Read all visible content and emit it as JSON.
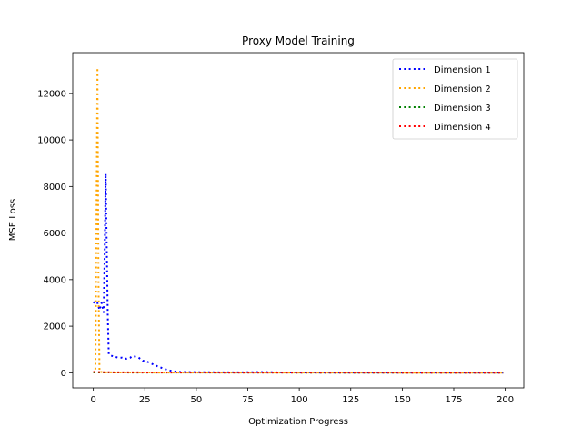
{
  "chart_data": {
    "type": "line",
    "title": "Proxy Model Training",
    "xlabel": "Optimization Progress",
    "ylabel": "MSE Loss",
    "xlim": [
      -10,
      209
    ],
    "ylim": [
      -650,
      13750
    ],
    "xticks": [
      0,
      25,
      50,
      75,
      100,
      125,
      150,
      175,
      200
    ],
    "yticks": [
      0,
      2000,
      4000,
      6000,
      8000,
      10000,
      12000
    ],
    "grid": false,
    "legend_position": "top-right",
    "line_style": "dotted",
    "series": [
      {
        "name": "Dimension 1",
        "color": "#0000ff",
        "points": [
          [
            0,
            3050
          ],
          [
            1,
            2950
          ],
          [
            2,
            3000
          ],
          [
            3,
            2700
          ],
          [
            4,
            3000
          ],
          [
            5,
            2600
          ],
          [
            5.5,
            5000
          ],
          [
            6,
            8550
          ],
          [
            6.5,
            5500
          ],
          [
            7,
            2500
          ],
          [
            7.5,
            800
          ],
          [
            8,
            750
          ],
          [
            10,
            700
          ],
          [
            12,
            650
          ],
          [
            14,
            650
          ],
          [
            16,
            600
          ],
          [
            18,
            650
          ],
          [
            19,
            720
          ],
          [
            20,
            700
          ],
          [
            22,
            650
          ],
          [
            24,
            520
          ],
          [
            26,
            480
          ],
          [
            28,
            400
          ],
          [
            30,
            320
          ],
          [
            32,
            250
          ],
          [
            34,
            180
          ],
          [
            36,
            120
          ],
          [
            38,
            80
          ],
          [
            40,
            50
          ],
          [
            42,
            35
          ],
          [
            45,
            30
          ],
          [
            50,
            25
          ],
          [
            60,
            20
          ],
          [
            70,
            18
          ],
          [
            84,
            30
          ],
          [
            90,
            15
          ],
          [
            100,
            12
          ],
          [
            120,
            10
          ],
          [
            150,
            8
          ],
          [
            175,
            8
          ],
          [
            199,
            6
          ]
        ]
      },
      {
        "name": "Dimension 2",
        "color": "#ffa500",
        "points": [
          [
            0,
            30
          ],
          [
            1,
            20
          ],
          [
            1.5,
            6000
          ],
          [
            2,
            13100
          ],
          [
            2.5,
            4000
          ],
          [
            3,
            40
          ],
          [
            5,
            20
          ],
          [
            10,
            15
          ],
          [
            20,
            12
          ],
          [
            40,
            10
          ],
          [
            60,
            8
          ],
          [
            100,
            8
          ],
          [
            150,
            6
          ],
          [
            199,
            5
          ]
        ]
      },
      {
        "name": "Dimension 3",
        "color": "#008000",
        "points": [
          [
            0,
            15
          ],
          [
            10,
            12
          ],
          [
            25,
            10
          ],
          [
            50,
            8
          ],
          [
            75,
            7
          ],
          [
            100,
            6
          ],
          [
            125,
            6
          ],
          [
            150,
            5
          ],
          [
            175,
            5
          ],
          [
            199,
            5
          ]
        ]
      },
      {
        "name": "Dimension 4",
        "color": "#ff0000",
        "points": [
          [
            0,
            40
          ],
          [
            2,
            30
          ],
          [
            5,
            25
          ],
          [
            10,
            20
          ],
          [
            25,
            15
          ],
          [
            50,
            12
          ],
          [
            75,
            10
          ],
          [
            100,
            8
          ],
          [
            125,
            7
          ],
          [
            150,
            6
          ],
          [
            175,
            6
          ],
          [
            199,
            5
          ]
        ]
      }
    ]
  }
}
